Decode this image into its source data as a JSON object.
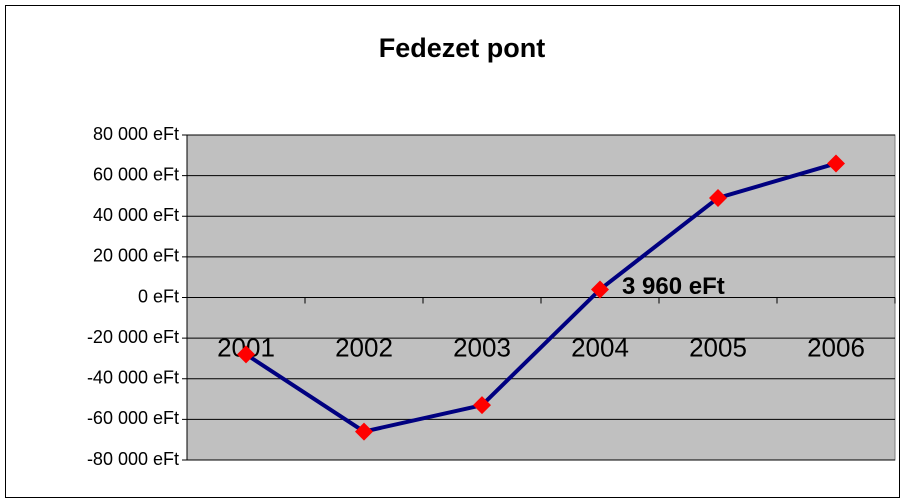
{
  "chart_data": {
    "type": "line",
    "title": "Fedezet pont",
    "categories": [
      "2001",
      "2002",
      "2003",
      "2004",
      "2005",
      "2006"
    ],
    "series": [
      {
        "name": "Fedezet pont",
        "color": "#000080",
        "marker_color": "#ff0000",
        "values": [
          -28000,
          -66000,
          -53000,
          3960,
          49000,
          66000
        ],
        "value_labels": [
          null,
          null,
          null,
          "3 960 eFt",
          null,
          null
        ]
      }
    ],
    "ylim": [
      -80000,
      80000
    ],
    "yticks": [
      {
        "value": -80000,
        "label": "-80 000 eFt"
      },
      {
        "value": -60000,
        "label": "-60 000 eFt"
      },
      {
        "value": -40000,
        "label": "-40 000 eFt"
      },
      {
        "value": -20000,
        "label": "-20 000 eFt"
      },
      {
        "value": 0,
        "label": "0 eFt"
      },
      {
        "value": 20000,
        "label": "20 000 eFt"
      },
      {
        "value": 40000,
        "label": "40 000 eFt"
      },
      {
        "value": 60000,
        "label": "60 000 eFt"
      },
      {
        "value": 80000,
        "label": "80 000 eFt"
      }
    ],
    "grid": true,
    "plot_background": "#c0c0c0"
  }
}
